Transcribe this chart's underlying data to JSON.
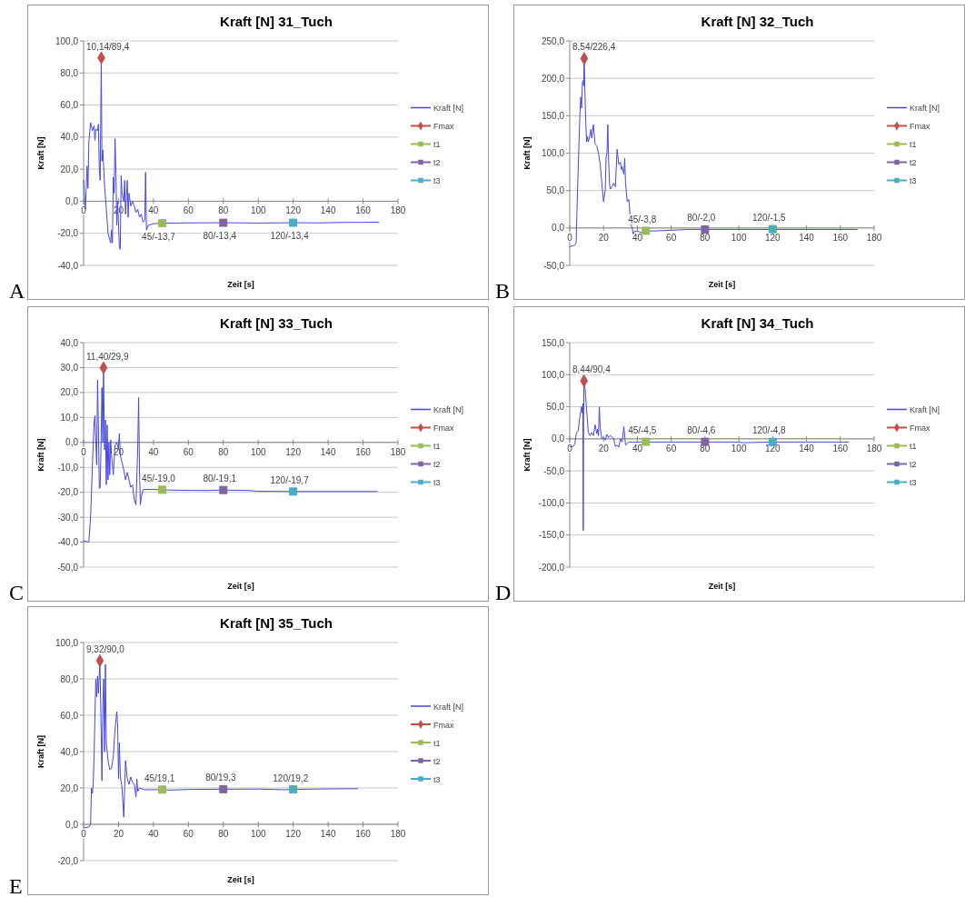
{
  "chart_data": [
    {
      "type": "line",
      "title": "Kraft [N] 31_Tuch",
      "xlabel": "Zeit [s]",
      "ylabel": "Kraft [N]",
      "xlim": [
        0,
        180
      ],
      "xticks": [
        0,
        20,
        40,
        60,
        80,
        100,
        120,
        140,
        160,
        180
      ],
      "ylim": [
        -40,
        100
      ],
      "yticks": [
        {
          "value": -40,
          "label": "-40,0"
        },
        {
          "value": -20,
          "label": "-20,0"
        },
        {
          "value": 0,
          "label": "0,0"
        },
        {
          "value": 20,
          "label": "20,0"
        },
        {
          "value": 40,
          "label": "40,0"
        },
        {
          "value": 60,
          "label": "60,0"
        },
        {
          "value": 80,
          "label": "80,0"
        },
        {
          "value": 100,
          "label": "100,0"
        }
      ],
      "grid": "y",
      "legend": "right",
      "annotations": [
        "A"
      ],
      "series": [
        {
          "name": "Kraft [N]",
          "type": "line",
          "marker": "none",
          "color": "#4646e6",
          "x": [
            0,
            1,
            2,
            2.5,
            3,
            4,
            5,
            6,
            6.5,
            7,
            8,
            8.5,
            9,
            9.5,
            10.14,
            10.5,
            11,
            12,
            13,
            14,
            15.5,
            16,
            16.5,
            17,
            17.5,
            18,
            18.5,
            19,
            19.5,
            20.5,
            21,
            21.5,
            22,
            23,
            23.5,
            24,
            25,
            25.5,
            26,
            27,
            28,
            29,
            30,
            31,
            32,
            33,
            34,
            35,
            35.5,
            36,
            37,
            40,
            45,
            60,
            80,
            100,
            120,
            135,
            150,
            169
          ],
          "values": [
            13,
            -5,
            22,
            8,
            37,
            49,
            44,
            47,
            38,
            45,
            44,
            48,
            20,
            13,
            89.4,
            25,
            32,
            10,
            -5,
            -20,
            -26,
            -18,
            -26,
            15,
            5,
            39,
            20,
            -15,
            0,
            -29,
            -30,
            16,
            5,
            0,
            13,
            -8,
            13,
            -10,
            5,
            -3,
            0,
            -3,
            -7,
            -5,
            -10,
            -8,
            -13,
            -12,
            18,
            -18,
            -15,
            -14,
            -13.7,
            -13.5,
            -13.4,
            -13.6,
            -13.4,
            -13.5,
            -13.2,
            -13.1
          ]
        },
        {
          "name": "Fmax",
          "type": "scatter",
          "marker": "diamond",
          "color": "#c0504d",
          "x": [
            10.14
          ],
          "values": [
            89.4
          ],
          "value_labels": [
            "10,14/89,4"
          ]
        },
        {
          "name": "t1",
          "type": "scatter",
          "marker": "square",
          "color": "#9bbb59",
          "x": [
            45
          ],
          "values": [
            -13.7
          ],
          "value_labels": [
            "45/-13,7"
          ]
        },
        {
          "name": "t2",
          "type": "scatter",
          "marker": "square",
          "color": "#8064a2",
          "x": [
            80
          ],
          "values": [
            -13.4
          ],
          "value_labels": [
            "80/-13,4"
          ]
        },
        {
          "name": "t3",
          "type": "scatter",
          "marker": "square",
          "color": "#4bacc6",
          "x": [
            120
          ],
          "values": [
            -13.4
          ],
          "value_labels": [
            "120/-13,4"
          ]
        }
      ]
    },
    {
      "type": "line",
      "title": "Kraft [N] 32_Tuch",
      "xlabel": "Zeit [s]",
      "ylabel": "Kraft [N]",
      "xlim": [
        0,
        180
      ],
      "xticks": [
        0,
        20,
        40,
        60,
        80,
        100,
        120,
        140,
        160,
        180
      ],
      "ylim": [
        -50,
        250
      ],
      "yticks": [
        {
          "value": -50,
          "label": "-50,0"
        },
        {
          "value": 0,
          "label": "0,0"
        },
        {
          "value": 50,
          "label": "50,0"
        },
        {
          "value": 100,
          "label": "100,0"
        },
        {
          "value": 150,
          "label": "150,0"
        },
        {
          "value": 200,
          "label": "200,0"
        },
        {
          "value": 250,
          "label": "250,0"
        }
      ],
      "grid": "y",
      "legend": "right",
      "annotations": [
        "B"
      ],
      "series": [
        {
          "name": "Kraft [N]",
          "type": "line",
          "marker": "none",
          "color": "#4646e6",
          "x": [
            0,
            3,
            3.8,
            4,
            5,
            6,
            6.5,
            7,
            7.5,
            8,
            8.2,
            8.54,
            9,
            9.5,
            10,
            10.5,
            11,
            12,
            12.5,
            13,
            14,
            15,
            16,
            17,
            18,
            19,
            20,
            21,
            21.5,
            22,
            22.5,
            23,
            23.5,
            24,
            25,
            26,
            27,
            28,
            29,
            30,
            30.5,
            31,
            32,
            32.5,
            33,
            34,
            35,
            36,
            37,
            37.5,
            38,
            40,
            42,
            45,
            50,
            60,
            70,
            80,
            100,
            120,
            140,
            160,
            170
          ],
          "values": [
            -25,
            -23,
            -20,
            0,
            80,
            150,
            175,
            160,
            195,
            197,
            190,
            226,
            180,
            140,
            115,
            122,
            115,
            125,
            132,
            120,
            138,
            112,
            110,
            100,
            85,
            60,
            35,
            50,
            95,
            100,
            138,
            90,
            60,
            52,
            55,
            60,
            55,
            105,
            85,
            88,
            78,
            82,
            72,
            93,
            60,
            35,
            38,
            5,
            0,
            -8,
            -5,
            -4,
            -6,
            -4,
            -4,
            -3,
            -2,
            -2,
            -2,
            -2,
            -2,
            -2,
            -2
          ]
        },
        {
          "name": "Fmax",
          "type": "scatter",
          "marker": "diamond",
          "color": "#c0504d",
          "x": [
            8.54
          ],
          "values": [
            226.4
          ],
          "value_labels": [
            "8,54/226,4"
          ]
        },
        {
          "name": "t1",
          "type": "scatter",
          "marker": "square",
          "color": "#9bbb59",
          "x": [
            45
          ],
          "values": [
            -3.8
          ],
          "value_labels": [
            "45/-3,8"
          ]
        },
        {
          "name": "t2",
          "type": "scatter",
          "marker": "square",
          "color": "#8064a2",
          "x": [
            80
          ],
          "values": [
            -2.0
          ],
          "value_labels": [
            "80/-2,0"
          ]
        },
        {
          "name": "t3",
          "type": "scatter",
          "marker": "square",
          "color": "#4bacc6",
          "x": [
            120
          ],
          "values": [
            -1.5
          ],
          "value_labels": [
            "120/-1,5"
          ]
        }
      ]
    },
    {
      "type": "line",
      "title": "Kraft [N] 33_Tuch",
      "xlabel": "Zeit [s]",
      "ylabel": "Kraft [N]",
      "xlim": [
        0,
        180
      ],
      "xticks": [
        0,
        20,
        40,
        60,
        80,
        100,
        120,
        140,
        160,
        180
      ],
      "ylim": [
        -50,
        40
      ],
      "yticks": [
        {
          "value": -50,
          "label": "-50,0"
        },
        {
          "value": -40,
          "label": "-40,0"
        },
        {
          "value": -30,
          "label": "-30,0"
        },
        {
          "value": -20,
          "label": "-20,0"
        },
        {
          "value": -10,
          "label": "-10,0"
        },
        {
          "value": 0,
          "label": "0,0"
        },
        {
          "value": 10,
          "label": "10,0"
        },
        {
          "value": 20,
          "label": "20,0"
        },
        {
          "value": 30,
          "label": "30,0"
        },
        {
          "value": 40,
          "label": "40,0"
        }
      ],
      "grid": "y",
      "legend": "right",
      "annotations": [
        "C"
      ],
      "series": [
        {
          "name": "Kraft [N]",
          "type": "line",
          "marker": "none",
          "color": "#4646e6",
          "x": [
            0,
            3,
            4,
            5,
            6,
            6.5,
            7,
            7.5,
            8,
            8.5,
            9,
            9.5,
            10,
            10.5,
            11,
            11.4,
            12,
            12.5,
            13,
            13.5,
            14,
            14.5,
            15,
            15.5,
            16,
            17,
            18,
            19,
            20,
            20.5,
            21,
            22,
            23,
            24,
            25,
            26,
            27,
            28,
            29,
            30,
            31,
            31.5,
            32,
            32.5,
            33,
            34,
            36,
            45,
            55,
            70,
            80,
            95,
            100,
            120,
            140,
            168
          ],
          "values": [
            -39.5,
            -40,
            -30,
            -10,
            8,
            10.7,
            0,
            -9,
            25,
            5,
            -18.5,
            -18,
            0,
            22,
            0,
            29.9,
            -3,
            9,
            -17,
            7,
            -15,
            0,
            -13,
            1,
            -5,
            -13,
            -1,
            0,
            -3,
            3.5,
            -5,
            -8,
            -11,
            -15,
            -12,
            -15,
            -18,
            -17,
            -23,
            -25,
            -2,
            18,
            -10,
            -25,
            -22,
            -19,
            -18.8,
            -19.0,
            -19.2,
            -19.3,
            -19.1,
            -19.3,
            -19.6,
            -19.7,
            -19.7,
            -19.7
          ]
        },
        {
          "name": "Fmax",
          "type": "scatter",
          "marker": "diamond",
          "color": "#c0504d",
          "x": [
            11.4
          ],
          "values": [
            29.9
          ],
          "value_labels": [
            "11,40/29,9"
          ]
        },
        {
          "name": "t1",
          "type": "scatter",
          "marker": "square",
          "color": "#9bbb59",
          "x": [
            45
          ],
          "values": [
            -19.0
          ],
          "value_labels": [
            "45/-19,0"
          ]
        },
        {
          "name": "t2",
          "type": "scatter",
          "marker": "square",
          "color": "#8064a2",
          "x": [
            80
          ],
          "values": [
            -19.1
          ],
          "value_labels": [
            "80/-19,1"
          ]
        },
        {
          "name": "t3",
          "type": "scatter",
          "marker": "square",
          "color": "#4bacc6",
          "x": [
            120
          ],
          "values": [
            -19.7
          ],
          "value_labels": [
            "120/-19,7"
          ]
        }
      ]
    },
    {
      "type": "line",
      "title": "Kraft [N] 34_Tuch",
      "xlabel": "Zeit [s]",
      "ylabel": "Kraft [N]",
      "xlim": [
        0,
        180
      ],
      "xticks": [
        0,
        20,
        40,
        60,
        80,
        100,
        120,
        140,
        160,
        180
      ],
      "ylim": [
        -200,
        150
      ],
      "yticks": [
        {
          "value": -200,
          "label": "-200,0"
        },
        {
          "value": -150,
          "label": "-150,0"
        },
        {
          "value": -100,
          "label": "-100,0"
        },
        {
          "value": -50,
          "label": "-50,0"
        },
        {
          "value": 0,
          "label": "0,0"
        },
        {
          "value": 50,
          "label": "50,0"
        },
        {
          "value": 100,
          "label": "100,0"
        },
        {
          "value": 150,
          "label": "150,0"
        }
      ],
      "grid": "y",
      "legend": "right",
      "annotations": [
        "D"
      ],
      "series": [
        {
          "name": "Kraft [N]",
          "type": "line",
          "marker": "none",
          "color": "#4646e6",
          "x": [
            0,
            2,
            3,
            4,
            5,
            6,
            7,
            7.5,
            7.8,
            8,
            8.2,
            8.44,
            9,
            10,
            11,
            12,
            13,
            14,
            15,
            16,
            16.5,
            17,
            17.5,
            18,
            19,
            20,
            21,
            22,
            23,
            24,
            25,
            26,
            27,
            28,
            29,
            30,
            31,
            32,
            33,
            35,
            45,
            60,
            65,
            80,
            100,
            102,
            120,
            140,
            165
          ],
          "values": [
            -12,
            -12,
            -8,
            10,
            12,
            35,
            50,
            40,
            55,
            -143,
            30,
            90,
            80,
            45,
            10,
            5,
            10,
            5,
            22,
            8,
            15,
            5,
            50,
            18,
            0,
            2,
            -2,
            7,
            2,
            5,
            3,
            0,
            -12,
            -10,
            -13,
            0,
            -5,
            19,
            -10,
            -5,
            -5,
            -5,
            -5,
            -5,
            -5,
            -6,
            -5,
            -5,
            -5
          ]
        },
        {
          "name": "Fmax",
          "type": "scatter",
          "marker": "diamond",
          "color": "#c0504d",
          "x": [
            8.44
          ],
          "values": [
            90.4
          ],
          "value_labels": [
            "8,44/90,4"
          ]
        },
        {
          "name": "t1",
          "type": "scatter",
          "marker": "square",
          "color": "#9bbb59",
          "x": [
            45
          ],
          "values": [
            -4.5
          ],
          "value_labels": [
            "45/-4,5"
          ]
        },
        {
          "name": "t2",
          "type": "scatter",
          "marker": "square",
          "color": "#8064a2",
          "x": [
            80
          ],
          "values": [
            -4.6
          ],
          "value_labels": [
            "80/-4,6"
          ]
        },
        {
          "name": "t3",
          "type": "scatter",
          "marker": "square",
          "color": "#4bacc6",
          "x": [
            120
          ],
          "values": [
            -4.8
          ],
          "value_labels": [
            "120/-4,8"
          ]
        }
      ]
    },
    {
      "type": "line",
      "title": "Kraft [N] 35_Tuch",
      "xlabel": "Zeit [s]",
      "ylabel": "Kraft [N]",
      "xlim": [
        0,
        180
      ],
      "xticks": [
        0,
        20,
        40,
        60,
        80,
        100,
        120,
        140,
        160,
        180
      ],
      "ylim": [
        -20,
        100
      ],
      "yticks": [
        {
          "value": -20,
          "label": "-20,0"
        },
        {
          "value": 0,
          "label": "0,0"
        },
        {
          "value": 20,
          "label": "20,0"
        },
        {
          "value": 40,
          "label": "40,0"
        },
        {
          "value": 60,
          "label": "60,0"
        },
        {
          "value": 80,
          "label": "80,0"
        },
        {
          "value": 100,
          "label": "100,0"
        }
      ],
      "grid": "y",
      "legend": "right",
      "annotations": [
        "E"
      ],
      "series": [
        {
          "name": "Kraft [N]",
          "type": "line",
          "marker": "none",
          "color": "#4646e6",
          "x": [
            0,
            3,
            4,
            4.5,
            5,
            5.5,
            6,
            6.5,
            7,
            7.5,
            8,
            8.5,
            9.32,
            10,
            10.5,
            11,
            11.5,
            12,
            12.5,
            13,
            14,
            15,
            16,
            17,
            18,
            19,
            19.5,
            20,
            20.5,
            21,
            22,
            23,
            24,
            25,
            26,
            27,
            28,
            29,
            30,
            30.5,
            31,
            32,
            35,
            45,
            50,
            60,
            80,
            100,
            115,
            120,
            140,
            157
          ],
          "values": [
            -2,
            -1.5,
            0,
            20,
            17,
            22,
            37,
            60,
            80,
            70,
            81.5,
            72,
            90.0,
            55,
            24,
            65,
            80,
            40,
            88,
            45,
            35,
            30,
            31,
            37,
            52,
            62,
            55,
            25,
            45,
            27,
            20,
            4,
            35,
            25,
            22,
            26,
            23,
            22,
            15,
            25,
            18,
            20,
            19,
            19.1,
            18.8,
            19.2,
            19.3,
            19.4,
            19,
            19.2,
            19.5,
            19.6
          ]
        },
        {
          "name": "Fmax",
          "type": "scatter",
          "marker": "diamond",
          "color": "#c0504d",
          "x": [
            9.32
          ],
          "values": [
            90.0
          ],
          "value_labels": [
            "9,32/90,0"
          ]
        },
        {
          "name": "t1",
          "type": "scatter",
          "marker": "square",
          "color": "#9bbb59",
          "x": [
            45
          ],
          "values": [
            19.1
          ],
          "value_labels": [
            "45/19,1"
          ]
        },
        {
          "name": "t2",
          "type": "scatter",
          "marker": "square",
          "color": "#8064a2",
          "x": [
            80
          ],
          "values": [
            19.3
          ],
          "value_labels": [
            "80/19,3"
          ]
        },
        {
          "name": "t3",
          "type": "scatter",
          "marker": "square",
          "color": "#4bacc6",
          "x": [
            120
          ],
          "values": [
            19.2
          ],
          "value_labels": [
            "120/19,2"
          ]
        }
      ]
    }
  ]
}
